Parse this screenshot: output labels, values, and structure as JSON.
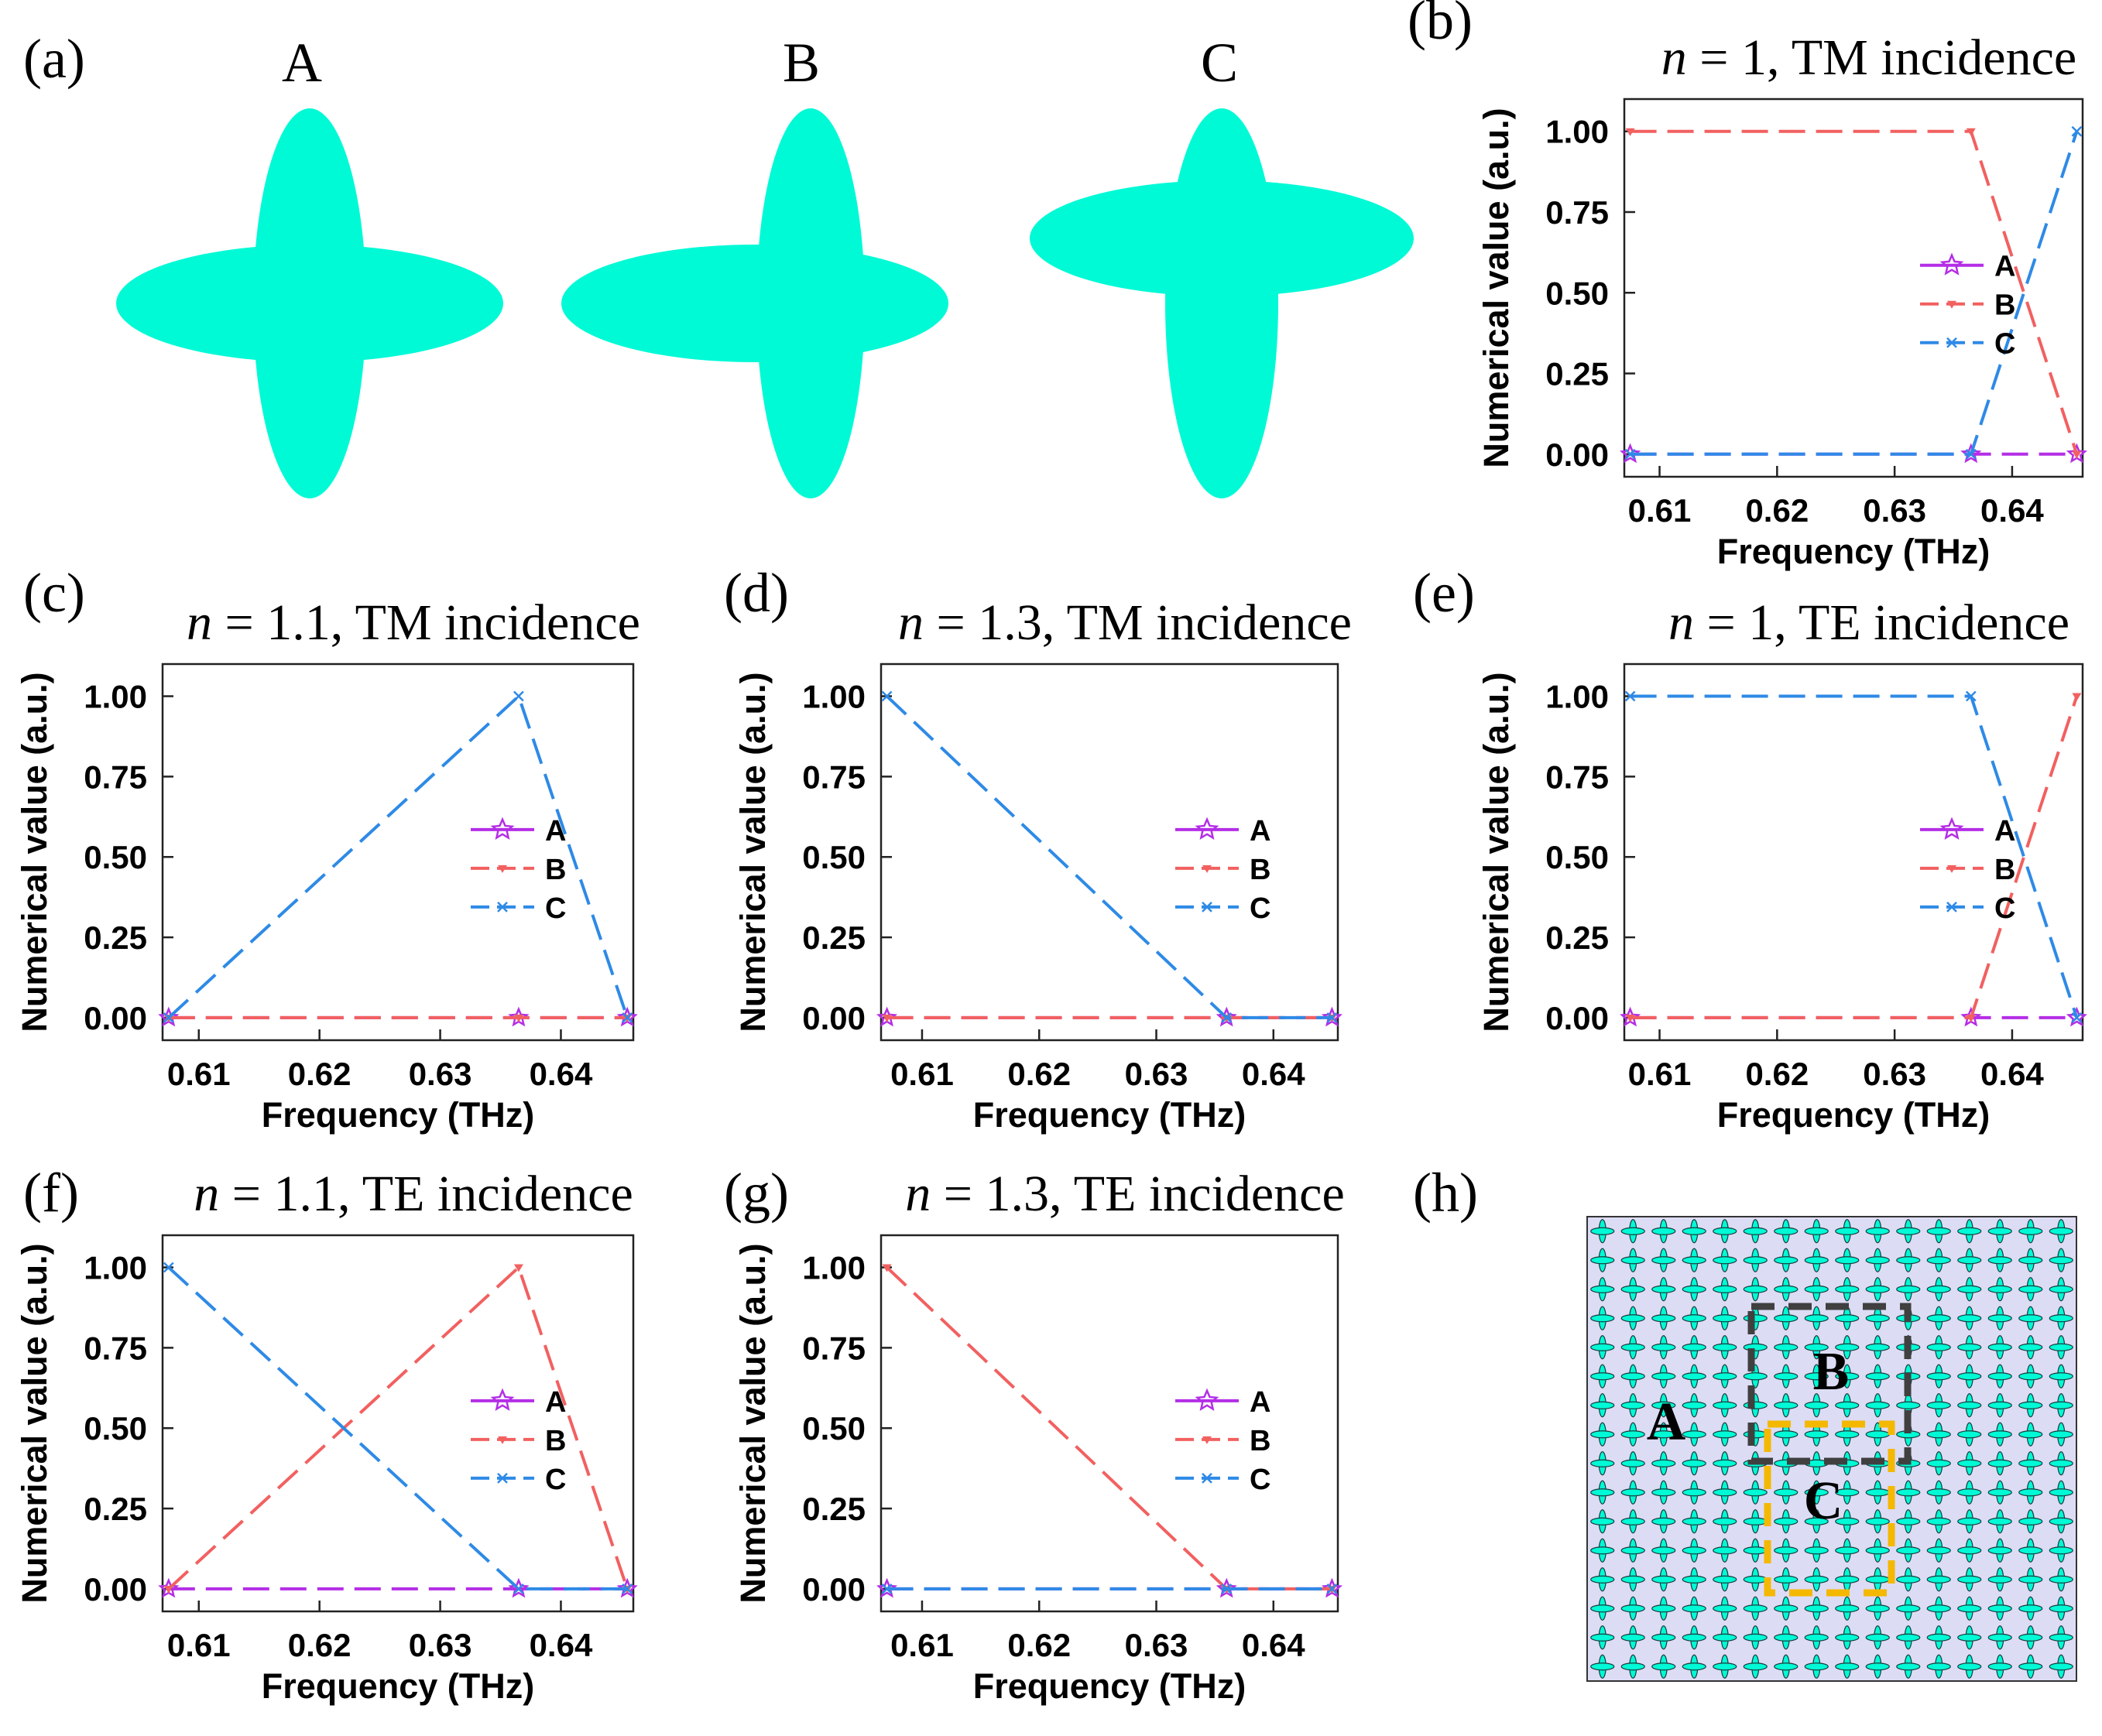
{
  "colors": {
    "shape": "#00FAD6",
    "A": "#B42EE6",
    "B": "#F26060",
    "C": "#2E8AE6",
    "cell_bg": "#DCDCF5",
    "box_B": "#404040",
    "box_C": "#F5B800"
  },
  "panel_a": {
    "label": "(a)",
    "shapes": [
      {
        "label": "A",
        "horizontal_arm": "long",
        "vertical_arm": "long",
        "offset": "none"
      },
      {
        "label": "B",
        "horizontal_arm": "long",
        "vertical_arm": "long",
        "offset": "horizontal arm shifted left"
      },
      {
        "label": "C",
        "horizontal_arm": "long",
        "vertical_arm": "long",
        "offset": "horizontal arm shifted up"
      }
    ]
  },
  "panel_h": {
    "label": "(h)",
    "region_labels": [
      "A",
      "B",
      "C"
    ],
    "grid_cells": 16
  },
  "chart_data": [
    {
      "panel": "(b)",
      "type": "line",
      "title_n": "n",
      "title_rest": " = 1, TM incidence",
      "xlabel": "Frequency (THz)",
      "ylabel": "Numerical value (a.u.)",
      "xlim": [
        0.607,
        0.646
      ],
      "ylim": [
        -0.07,
        1.1
      ],
      "xticks": [
        "0.61",
        "0.62",
        "0.63",
        "0.64"
      ],
      "xtick_values": [
        0.61,
        0.62,
        0.63,
        0.64
      ],
      "yticks": [
        "0.00",
        "0.25",
        "0.50",
        "0.75",
        "1.00"
      ],
      "ytick_values": [
        0,
        0.25,
        0.5,
        0.75,
        1.0
      ],
      "x": [
        0.6075,
        0.6365,
        0.6455
      ],
      "series": [
        {
          "name": "A",
          "values": [
            0,
            0,
            0
          ]
        },
        {
          "name": "B",
          "values": [
            1,
            1,
            0
          ]
        },
        {
          "name": "C",
          "values": [
            0,
            0,
            1
          ]
        }
      ],
      "legend": "center-right"
    },
    {
      "panel": "(c)",
      "type": "line",
      "title_n": "n",
      "title_rest": " = 1.1, TM incidence",
      "xlabel": "Frequency (THz)",
      "ylabel": "Numerical value (a.u.)",
      "xlim": [
        0.607,
        0.646
      ],
      "ylim": [
        -0.07,
        1.1
      ],
      "xticks": [
        "0.61",
        "0.62",
        "0.63",
        "0.64"
      ],
      "xtick_values": [
        0.61,
        0.62,
        0.63,
        0.64
      ],
      "yticks": [
        "0.00",
        "0.25",
        "0.50",
        "0.75",
        "1.00"
      ],
      "ytick_values": [
        0,
        0.25,
        0.5,
        0.75,
        1.0
      ],
      "x": [
        0.6075,
        0.6365,
        0.6455
      ],
      "series": [
        {
          "name": "A",
          "values": [
            0,
            0,
            0
          ]
        },
        {
          "name": "B",
          "values": [
            0,
            0,
            0
          ]
        },
        {
          "name": "C",
          "values": [
            0,
            1,
            0
          ]
        }
      ],
      "legend": "center-right"
    },
    {
      "panel": "(d)",
      "type": "line",
      "title_n": "n",
      "title_rest": " = 1.3, TM incidence",
      "xlabel": "Frequency (THz)",
      "ylabel": "Numerical value (a.u.)",
      "xlim": [
        0.6065,
        0.6455
      ],
      "ylim": [
        -0.07,
        1.1
      ],
      "xticks": [
        "0.61",
        "0.62",
        "0.63",
        "0.64"
      ],
      "xtick_values": [
        0.61,
        0.62,
        0.63,
        0.64
      ],
      "yticks": [
        "0.00",
        "0.25",
        "0.50",
        "0.75",
        "1.00"
      ],
      "ytick_values": [
        0,
        0.25,
        0.5,
        0.75,
        1.0
      ],
      "x": [
        0.607,
        0.636,
        0.645
      ],
      "series": [
        {
          "name": "A",
          "values": [
            0,
            0,
            0
          ]
        },
        {
          "name": "B",
          "values": [
            0,
            0,
            0
          ]
        },
        {
          "name": "C",
          "values": [
            1,
            0,
            0
          ]
        }
      ],
      "legend": "center-right"
    },
    {
      "panel": "(e)",
      "type": "line",
      "title_n": "n",
      "title_rest": " = 1, TE incidence",
      "xlabel": "Frequency (THz)",
      "ylabel": "Numerical value (a.u.)",
      "xlim": [
        0.607,
        0.646
      ],
      "ylim": [
        -0.07,
        1.1
      ],
      "xticks": [
        "0.61",
        "0.62",
        "0.63",
        "0.64"
      ],
      "xtick_values": [
        0.61,
        0.62,
        0.63,
        0.64
      ],
      "yticks": [
        "0.00",
        "0.25",
        "0.50",
        "0.75",
        "1.00"
      ],
      "ytick_values": [
        0,
        0.25,
        0.5,
        0.75,
        1.0
      ],
      "x": [
        0.6075,
        0.6365,
        0.6455
      ],
      "series": [
        {
          "name": "A",
          "values": [
            0,
            0,
            0
          ]
        },
        {
          "name": "B",
          "values": [
            0,
            0,
            1
          ]
        },
        {
          "name": "C",
          "values": [
            1,
            1,
            0
          ]
        }
      ],
      "legend": "center-right"
    },
    {
      "panel": "(f)",
      "type": "line",
      "title_n": "n",
      "title_rest": " = 1.1, TE incidence",
      "xlabel": "Frequency (THz)",
      "ylabel": "Numerical value (a.u.)",
      "xlim": [
        0.607,
        0.646
      ],
      "ylim": [
        -0.07,
        1.1
      ],
      "xticks": [
        "0.61",
        "0.62",
        "0.63",
        "0.64"
      ],
      "xtick_values": [
        0.61,
        0.62,
        0.63,
        0.64
      ],
      "yticks": [
        "0.00",
        "0.25",
        "0.50",
        "0.75",
        "1.00"
      ],
      "ytick_values": [
        0,
        0.25,
        0.5,
        0.75,
        1.0
      ],
      "x": [
        0.6075,
        0.6365,
        0.6455
      ],
      "series": [
        {
          "name": "A",
          "values": [
            0,
            0,
            0
          ]
        },
        {
          "name": "B",
          "values": [
            0,
            1,
            0
          ]
        },
        {
          "name": "C",
          "values": [
            1,
            0,
            0
          ]
        }
      ],
      "legend": "center-right"
    },
    {
      "panel": "(g)",
      "type": "line",
      "title_n": "n",
      "title_rest": " = 1.3, TE incidence",
      "xlabel": "Frequency (THz)",
      "ylabel": "Numerical value (a.u.)",
      "xlim": [
        0.6065,
        0.6455
      ],
      "ylim": [
        -0.07,
        1.1
      ],
      "xticks": [
        "0.61",
        "0.62",
        "0.63",
        "0.64"
      ],
      "xtick_values": [
        0.61,
        0.62,
        0.63,
        0.64
      ],
      "yticks": [
        "0.00",
        "0.25",
        "0.50",
        "0.75",
        "1.00"
      ],
      "ytick_values": [
        0,
        0.25,
        0.5,
        0.75,
        1.0
      ],
      "x": [
        0.607,
        0.636,
        0.645
      ],
      "series": [
        {
          "name": "A",
          "values": [
            0,
            0,
            0
          ]
        },
        {
          "name": "B",
          "values": [
            1,
            0,
            0
          ]
        },
        {
          "name": "C",
          "values": [
            0,
            0,
            0
          ]
        }
      ],
      "legend": "center-right"
    }
  ]
}
